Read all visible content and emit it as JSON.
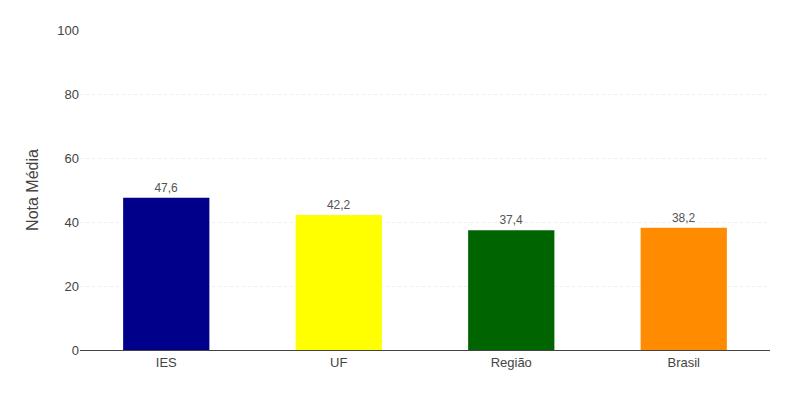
{
  "chart_data": {
    "type": "bar",
    "categories": [
      "IES",
      "UF",
      "Região",
      "Brasil"
    ],
    "values": [
      47.6,
      42.2,
      37.4,
      38.2
    ],
    "value_labels": [
      "47,6",
      "42,2",
      "37,4",
      "38,2"
    ],
    "data_labels": true,
    "colors": [
      "#00008B",
      "#FFFF00",
      "#006400",
      "#FF8C00"
    ],
    "ylabel": "Nota Média",
    "ylim": [
      0,
      100
    ],
    "yticks": [
      0,
      20,
      40,
      60,
      80,
      100
    ],
    "grid": true
  }
}
